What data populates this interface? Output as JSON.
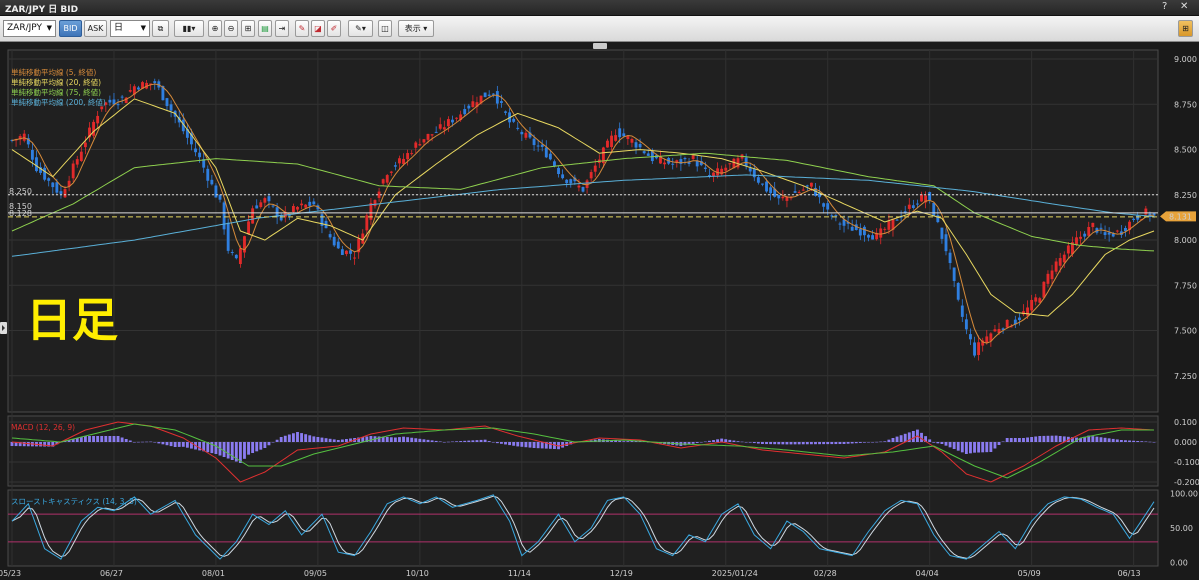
{
  "window": {
    "title": "ZAR/JPY 日 BID",
    "help": "?",
    "close": "✕"
  },
  "toolbar": {
    "symbol": "ZAR/JPY",
    "bid": "BID",
    "ask": "ASK",
    "period": "日",
    "display": "表示"
  },
  "chart_data": [
    {
      "type": "candlestick",
      "title": "ZAR/JPY 日 BID",
      "overlay_text": "日足",
      "y_ticks": [
        9.0,
        8.75,
        8.5,
        8.25,
        8.0,
        7.75,
        7.5,
        7.25
      ],
      "y_tick_labels": [
        "9.000",
        "8.750",
        "8.500",
        "8.250",
        "8.000",
        "7.750",
        "7.500",
        "7.250"
      ],
      "ylim": [
        7.05,
        9.05
      ],
      "x_tick_labels": [
        "05/23",
        "06/27",
        "08/01",
        "09/05",
        "10/10",
        "11/14",
        "12/19",
        "2025/01/24",
        "02/28",
        "04/04",
        "05/09",
        "06/13"
      ],
      "x_tick_index": [
        0,
        25,
        50,
        75,
        100,
        125,
        150,
        175,
        200,
        225,
        250,
        275
      ],
      "legend": [
        {
          "label": "単純移動平均線 (5, 終値)",
          "color": "#d58a3a"
        },
        {
          "label": "単純移動平均線 (20, 終値)",
          "color": "#e8d860"
        },
        {
          "label": "単純移動平均線 (75, 終値)",
          "color": "#8fd14f"
        },
        {
          "label": "単純移動平均線 (200, 終値)",
          "color": "#5ab0d8"
        }
      ],
      "price_lines": [
        {
          "label": "8.250",
          "value": 8.25,
          "style": "dotted",
          "color": "#dddddd"
        },
        {
          "label": "8.150",
          "value": 8.15,
          "style": "solid",
          "color": "#dddddd"
        },
        {
          "label": "8.128",
          "value": 8.128,
          "style": "dashed",
          "color": "#e8d860"
        }
      ],
      "current_price": {
        "label": "8.131",
        "value": 8.131,
        "color": "#e8a33a"
      },
      "close_anchors": [
        [
          0,
          8.55
        ],
        [
          3,
          8.58
        ],
        [
          6,
          8.4
        ],
        [
          12,
          8.25
        ],
        [
          17,
          8.5
        ],
        [
          22,
          8.75
        ],
        [
          27,
          8.78
        ],
        [
          30,
          8.85
        ],
        [
          35,
          8.87
        ],
        [
          40,
          8.68
        ],
        [
          46,
          8.45
        ],
        [
          51,
          8.2
        ],
        [
          53,
          7.95
        ],
        [
          55,
          7.88
        ],
        [
          59,
          8.18
        ],
        [
          62,
          8.22
        ],
        [
          66,
          8.12
        ],
        [
          70,
          8.18
        ],
        [
          74,
          8.2
        ],
        [
          77,
          8.05
        ],
        [
          80,
          7.95
        ],
        [
          84,
          7.92
        ],
        [
          88,
          8.2
        ],
        [
          92,
          8.38
        ],
        [
          96,
          8.45
        ],
        [
          100,
          8.55
        ],
        [
          104,
          8.6
        ],
        [
          110,
          8.7
        ],
        [
          114,
          8.78
        ],
        [
          118,
          8.82
        ],
        [
          122,
          8.65
        ],
        [
          127,
          8.55
        ],
        [
          131,
          8.48
        ],
        [
          135,
          8.35
        ],
        [
          140,
          8.28
        ],
        [
          144,
          8.45
        ],
        [
          148,
          8.6
        ],
        [
          152,
          8.55
        ],
        [
          157,
          8.45
        ],
        [
          162,
          8.42
        ],
        [
          167,
          8.45
        ],
        [
          171,
          8.35
        ],
        [
          175,
          8.4
        ],
        [
          179,
          8.45
        ],
        [
          184,
          8.3
        ],
        [
          188,
          8.22
        ],
        [
          192,
          8.26
        ],
        [
          196,
          8.3
        ],
        [
          200,
          8.15
        ],
        [
          204,
          8.08
        ],
        [
          208,
          8.05
        ],
        [
          212,
          8.02
        ],
        [
          216,
          8.1
        ],
        [
          220,
          8.18
        ],
        [
          224,
          8.25
        ],
        [
          226,
          8.15
        ],
        [
          229,
          7.95
        ],
        [
          232,
          7.65
        ],
        [
          234,
          7.5
        ],
        [
          236,
          7.38
        ],
        [
          238,
          7.45
        ],
        [
          242,
          7.52
        ],
        [
          246,
          7.55
        ],
        [
          249,
          7.62
        ],
        [
          252,
          7.7
        ],
        [
          255,
          7.85
        ],
        [
          258,
          7.92
        ],
        [
          261,
          8.0
        ],
        [
          265,
          8.08
        ],
        [
          268,
          8.02
        ],
        [
          272,
          8.05
        ],
        [
          275,
          8.12
        ],
        [
          278,
          8.15
        ],
        [
          280,
          8.13
        ]
      ],
      "ma_lines": {
        "ma20": [
          [
            0,
            8.5
          ],
          [
            10,
            8.35
          ],
          [
            20,
            8.6
          ],
          [
            30,
            8.78
          ],
          [
            40,
            8.7
          ],
          [
            50,
            8.4
          ],
          [
            56,
            8.05
          ],
          [
            62,
            8.0
          ],
          [
            70,
            8.12
          ],
          [
            78,
            8.08
          ],
          [
            86,
            8.0
          ],
          [
            94,
            8.25
          ],
          [
            104,
            8.42
          ],
          [
            114,
            8.58
          ],
          [
            124,
            8.7
          ],
          [
            134,
            8.62
          ],
          [
            144,
            8.48
          ],
          [
            154,
            8.5
          ],
          [
            164,
            8.48
          ],
          [
            174,
            8.45
          ],
          [
            184,
            8.38
          ],
          [
            194,
            8.3
          ],
          [
            204,
            8.2
          ],
          [
            214,
            8.1
          ],
          [
            222,
            8.16
          ],
          [
            228,
            8.12
          ],
          [
            234,
            7.92
          ],
          [
            240,
            7.7
          ],
          [
            246,
            7.6
          ],
          [
            254,
            7.58
          ],
          [
            260,
            7.7
          ],
          [
            268,
            7.92
          ],
          [
            274,
            8.0
          ],
          [
            280,
            8.05
          ]
        ],
        "ma75": [
          [
            0,
            8.05
          ],
          [
            15,
            8.2
          ],
          [
            30,
            8.4
          ],
          [
            50,
            8.45
          ],
          [
            70,
            8.42
          ],
          [
            90,
            8.3
          ],
          [
            110,
            8.28
          ],
          [
            130,
            8.4
          ],
          [
            150,
            8.45
          ],
          [
            170,
            8.48
          ],
          [
            190,
            8.44
          ],
          [
            210,
            8.35
          ],
          [
            226,
            8.3
          ],
          [
            236,
            8.15
          ],
          [
            250,
            8.02
          ],
          [
            262,
            7.97
          ],
          [
            272,
            7.95
          ],
          [
            280,
            7.94
          ]
        ],
        "ma200": [
          [
            0,
            7.91
          ],
          [
            30,
            8.0
          ],
          [
            60,
            8.12
          ],
          [
            90,
            8.2
          ],
          [
            120,
            8.28
          ],
          [
            150,
            8.33
          ],
          [
            180,
            8.36
          ],
          [
            210,
            8.33
          ],
          [
            235,
            8.27
          ],
          [
            255,
            8.2
          ],
          [
            270,
            8.15
          ],
          [
            280,
            8.13
          ]
        ]
      }
    },
    {
      "type": "macd",
      "title": "MACD (12, 26, 9)",
      "y_tick_labels": [
        "0.100",
        "0.000",
        "-0.100",
        "-0.200"
      ],
      "y_ticks": [
        0.1,
        0.0,
        -0.1,
        -0.2
      ],
      "ylim": [
        -0.22,
        0.13
      ],
      "macd": [
        [
          0,
          0.0
        ],
        [
          10,
          -0.02
        ],
        [
          18,
          0.06
        ],
        [
          26,
          0.1
        ],
        [
          34,
          0.08
        ],
        [
          42,
          0.02
        ],
        [
          50,
          -0.08
        ],
        [
          56,
          -0.2
        ],
        [
          62,
          -0.15
        ],
        [
          70,
          -0.04
        ],
        [
          80,
          -0.02
        ],
        [
          88,
          0.04
        ],
        [
          96,
          0.07
        ],
        [
          106,
          0.06
        ],
        [
          116,
          0.08
        ],
        [
          124,
          0.03
        ],
        [
          134,
          -0.02
        ],
        [
          144,
          0.02
        ],
        [
          154,
          0.01
        ],
        [
          164,
          -0.03
        ],
        [
          174,
          0.0
        ],
        [
          184,
          -0.04
        ],
        [
          194,
          -0.06
        ],
        [
          204,
          -0.08
        ],
        [
          214,
          -0.05
        ],
        [
          222,
          0.03
        ],
        [
          228,
          -0.05
        ],
        [
          234,
          -0.16
        ],
        [
          240,
          -0.2
        ],
        [
          248,
          -0.12
        ],
        [
          256,
          -0.02
        ],
        [
          264,
          0.06
        ],
        [
          272,
          0.07
        ],
        [
          280,
          0.06
        ]
      ],
      "signal": [
        [
          0,
          0.02
        ],
        [
          12,
          0.0
        ],
        [
          20,
          0.04
        ],
        [
          30,
          0.09
        ],
        [
          40,
          0.06
        ],
        [
          50,
          -0.02
        ],
        [
          58,
          -0.12
        ],
        [
          66,
          -0.12
        ],
        [
          74,
          -0.06
        ],
        [
          84,
          -0.01
        ],
        [
          94,
          0.04
        ],
        [
          106,
          0.06
        ],
        [
          118,
          0.07
        ],
        [
          128,
          0.04
        ],
        [
          138,
          0.0
        ],
        [
          150,
          0.01
        ],
        [
          164,
          -0.01
        ],
        [
          178,
          -0.02
        ],
        [
          190,
          -0.04
        ],
        [
          204,
          -0.07
        ],
        [
          216,
          -0.05
        ],
        [
          226,
          -0.02
        ],
        [
          236,
          -0.12
        ],
        [
          244,
          -0.18
        ],
        [
          252,
          -0.1
        ],
        [
          262,
          0.02
        ],
        [
          272,
          0.06
        ],
        [
          280,
          0.06
        ]
      ]
    },
    {
      "type": "stochastic",
      "title": "スローストキャスティクス (14, 3, 3)",
      "y_tick_labels": [
        "100.00",
        "50.00",
        "0.00"
      ],
      "y_ticks": [
        100,
        50,
        0
      ],
      "levels": [
        70,
        30
      ],
      "ylim": [
        -5,
        105
      ],
      "k": [
        [
          0,
          60
        ],
        [
          4,
          85
        ],
        [
          8,
          20
        ],
        [
          12,
          5
        ],
        [
          17,
          60
        ],
        [
          21,
          80
        ],
        [
          25,
          75
        ],
        [
          30,
          95
        ],
        [
          34,
          70
        ],
        [
          40,
          90
        ],
        [
          45,
          40
        ],
        [
          51,
          5
        ],
        [
          55,
          30
        ],
        [
          59,
          70
        ],
        [
          63,
          55
        ],
        [
          67,
          75
        ],
        [
          71,
          40
        ],
        [
          76,
          70
        ],
        [
          80,
          15
        ],
        [
          84,
          10
        ],
        [
          88,
          45
        ],
        [
          92,
          85
        ],
        [
          96,
          95
        ],
        [
          100,
          85
        ],
        [
          104,
          95
        ],
        [
          108,
          80
        ],
        [
          114,
          90
        ],
        [
          118,
          98
        ],
        [
          122,
          60
        ],
        [
          125,
          10
        ],
        [
          129,
          30
        ],
        [
          134,
          70
        ],
        [
          138,
          30
        ],
        [
          142,
          50
        ],
        [
          146,
          90
        ],
        [
          150,
          95
        ],
        [
          154,
          70
        ],
        [
          158,
          20
        ],
        [
          162,
          10
        ],
        [
          166,
          40
        ],
        [
          170,
          30
        ],
        [
          174,
          70
        ],
        [
          178,
          85
        ],
        [
          182,
          40
        ],
        [
          186,
          20
        ],
        [
          190,
          60
        ],
        [
          194,
          45
        ],
        [
          198,
          20
        ],
        [
          202,
          15
        ],
        [
          206,
          10
        ],
        [
          210,
          45
        ],
        [
          214,
          75
        ],
        [
          218,
          90
        ],
        [
          222,
          85
        ],
        [
          226,
          40
        ],
        [
          230,
          10
        ],
        [
          234,
          5
        ],
        [
          238,
          25
        ],
        [
          242,
          45
        ],
        [
          246,
          20
        ],
        [
          250,
          60
        ],
        [
          254,
          85
        ],
        [
          258,
          95
        ],
        [
          262,
          92
        ],
        [
          266,
          80
        ],
        [
          270,
          70
        ],
        [
          274,
          35
        ],
        [
          278,
          70
        ],
        [
          280,
          88
        ]
      ]
    }
  ]
}
